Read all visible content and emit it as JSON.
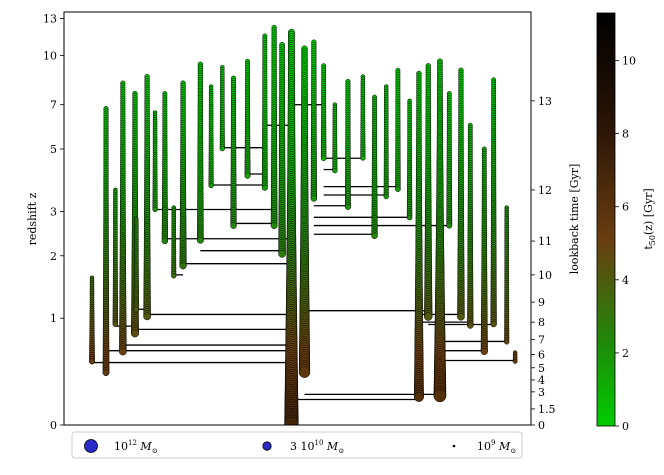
{
  "chart_data": {
    "type": "scatter",
    "title": "",
    "ylabel": "redshift z",
    "ylabel_right": "lookback time [Gyr]",
    "colorbar_label": "t_50(z) [Gyr]",
    "colorbar_label_main": "t",
    "colorbar_label_sub": "50",
    "colorbar_label_rest": "(z) [Gyr]",
    "y_scale": "log(1+z)",
    "ylim": [
      0,
      13.6
    ],
    "y_ticks": [
      "0",
      "1",
      "2",
      "3",
      "5",
      "7",
      "10",
      "13"
    ],
    "y_tick_values": [
      0,
      1,
      2,
      3,
      5,
      7,
      10,
      13
    ],
    "right_ticks": [
      "0",
      "1.5",
      "3",
      "4",
      "5",
      "6",
      "7",
      "8",
      "9",
      "10",
      "11",
      "12",
      "13"
    ],
    "right_tick_values": [
      0,
      1.5,
      3,
      4,
      5,
      6,
      7,
      8,
      9,
      10,
      11,
      12,
      13
    ],
    "colorbar_range": [
      0,
      11.3
    ],
    "colorbar_ticks": [
      "0",
      "2",
      "4",
      "6",
      "8",
      "10"
    ],
    "colorbar_tick_values": [
      0,
      2,
      4,
      6,
      8,
      10
    ],
    "colormap": [
      "#00cc00",
      "#1f8a0a",
      "#6a3e10",
      "#2b1506",
      "#000000"
    ],
    "marker_edge_color": "#000000",
    "legend": {
      "placement": "bottom",
      "entries": [
        {
          "label": "10",
          "sup": "12",
          "unit": "M",
          "sub": "⊙",
          "size": "large"
        },
        {
          "label": "3 10",
          "sup": "10",
          "unit": "M",
          "sub": "⊙",
          "size": "medium"
        },
        {
          "label": "10",
          "sup": "9",
          "unit": "M",
          "sub": "⊙",
          "size": "small"
        }
      ],
      "marker_color": "#2b2bc9"
    },
    "branches": [
      {
        "x": 0.487,
        "z_top": 11.8,
        "z_bottom": 0,
        "r_top": 3.2,
        "r_bottom": 7
      },
      {
        "x": 0.515,
        "z_top": 10.5,
        "z_bottom": 0.4,
        "r_top": 3.0,
        "r_bottom": 5.5
      },
      {
        "x": 0.467,
        "z_top": 10.8,
        "z_bottom": 2.0,
        "r_top": 2.6,
        "r_bottom": 3.6
      },
      {
        "x": 0.45,
        "z_top": 12.2,
        "z_bottom": 2.6,
        "r_top": 2.4,
        "r_bottom": 3.2
      },
      {
        "x": 0.43,
        "z_top": 11.5,
        "z_bottom": 3.6,
        "r_top": 2.2,
        "r_bottom": 2.8
      },
      {
        "x": 0.535,
        "z_top": 11.0,
        "z_bottom": 3.3,
        "r_top": 2.4,
        "r_bottom": 3.0
      },
      {
        "x": 0.556,
        "z_top": 9.3,
        "z_bottom": 4.6,
        "r_top": 2.2,
        "r_bottom": 2.6
      },
      {
        "x": 0.393,
        "z_top": 9.6,
        "z_bottom": 4.0,
        "r_top": 2.2,
        "r_bottom": 2.8
      },
      {
        "x": 0.363,
        "z_top": 8.5,
        "z_bottom": 2.6,
        "r_top": 2.3,
        "r_bottom": 3.0
      },
      {
        "x": 0.339,
        "z_top": 9.2,
        "z_bottom": 5.0,
        "r_top": 2.0,
        "r_bottom": 2.4
      },
      {
        "x": 0.315,
        "z_top": 8.0,
        "z_bottom": 3.7,
        "r_top": 2.0,
        "r_bottom": 2.4
      },
      {
        "x": 0.292,
        "z_top": 9.4,
        "z_bottom": 2.3,
        "r_top": 2.4,
        "r_bottom": 3.2
      },
      {
        "x": 0.255,
        "z_top": 8.2,
        "z_bottom": 1.8,
        "r_top": 2.4,
        "r_bottom": 3.4
      },
      {
        "x": 0.216,
        "z_top": 7.6,
        "z_bottom": 2.3,
        "r_top": 2.2,
        "r_bottom": 3.0
      },
      {
        "x": 0.195,
        "z_top": 6.6,
        "z_bottom": 3.0,
        "r_top": 2.0,
        "r_bottom": 2.4
      },
      {
        "x": 0.178,
        "z_top": 8.6,
        "z_bottom": 1.0,
        "r_top": 2.4,
        "r_bottom": 3.6
      },
      {
        "x": 0.152,
        "z_top": 7.6,
        "z_bottom": 0.8,
        "r_top": 2.4,
        "r_bottom": 3.8
      },
      {
        "x": 0.126,
        "z_top": 8.2,
        "z_bottom": 0.6,
        "r_top": 2.3,
        "r_bottom": 3.6
      },
      {
        "x": 0.11,
        "z_top": 3.6,
        "z_bottom": 0.9,
        "r_top": 2.0,
        "r_bottom": 2.6
      },
      {
        "x": 0.09,
        "z_top": 6.8,
        "z_bottom": 0.4,
        "r_top": 2.3,
        "r_bottom": 3.2
      },
      {
        "x": 0.06,
        "z_top": 1.6,
        "z_bottom": 0.5,
        "r_top": 2.0,
        "r_bottom": 2.8
      },
      {
        "x": 0.155,
        "z_top": 2.8,
        "z_bottom": 1.1,
        "r_top": 2.0,
        "r_bottom": 2.6
      },
      {
        "x": 0.235,
        "z_top": 3.1,
        "z_bottom": 1.6,
        "r_top": 2.0,
        "r_bottom": 2.4
      },
      {
        "x": 0.58,
        "z_top": 7.0,
        "z_bottom": 4.2,
        "r_top": 2.0,
        "r_bottom": 2.4
      },
      {
        "x": 0.608,
        "z_top": 8.3,
        "z_bottom": 3.1,
        "r_top": 2.3,
        "r_bottom": 2.8
      },
      {
        "x": 0.64,
        "z_top": 8.6,
        "z_bottom": 4.6,
        "r_top": 2.0,
        "r_bottom": 2.4
      },
      {
        "x": 0.665,
        "z_top": 7.4,
        "z_bottom": 2.4,
        "r_top": 2.2,
        "r_bottom": 3.0
      },
      {
        "x": 0.69,
        "z_top": 8.0,
        "z_bottom": 3.4,
        "r_top": 2.0,
        "r_bottom": 2.4
      },
      {
        "x": 0.715,
        "z_top": 9.0,
        "z_bottom": 3.6,
        "r_top": 2.2,
        "r_bottom": 2.6
      },
      {
        "x": 0.74,
        "z_top": 7.2,
        "z_bottom": 2.8,
        "r_top": 2.0,
        "r_bottom": 2.6
      },
      {
        "x": 0.76,
        "z_top": 8.8,
        "z_bottom": 0.2,
        "r_top": 2.4,
        "r_bottom": 4.8
      },
      {
        "x": 0.78,
        "z_top": 9.3,
        "z_bottom": 1.0,
        "r_top": 2.4,
        "r_bottom": 4.0
      },
      {
        "x": 0.805,
        "z_top": 9.6,
        "z_bottom": 0.2,
        "r_top": 2.6,
        "r_bottom": 6.2
      },
      {
        "x": 0.825,
        "z_top": 7.6,
        "z_bottom": 2.6,
        "r_top": 2.2,
        "r_bottom": 2.8
      },
      {
        "x": 0.85,
        "z_top": 9.0,
        "z_bottom": 1.0,
        "r_top": 2.4,
        "r_bottom": 3.6
      },
      {
        "x": 0.87,
        "z_top": 6.0,
        "z_bottom": 0.9,
        "r_top": 2.2,
        "r_bottom": 3.0
      },
      {
        "x": 0.9,
        "z_top": 5.0,
        "z_bottom": 0.6,
        "r_top": 2.2,
        "r_bottom": 3.4
      },
      {
        "x": 0.92,
        "z_top": 8.4,
        "z_bottom": 0.9,
        "r_top": 2.2,
        "r_bottom": 3.0
      },
      {
        "x": 0.948,
        "z_top": 3.1,
        "z_bottom": 0.7,
        "r_top": 2.0,
        "r_bottom": 2.4
      },
      {
        "x": 0.966,
        "z_top": 0.6,
        "z_bottom": 0.5,
        "r_top": 2.0,
        "r_bottom": 2.2
      }
    ],
    "links": [
      {
        "x1": 0.06,
        "x2": 0.487,
        "z": 0.5
      },
      {
        "x1": 0.09,
        "x2": 0.487,
        "z": 0.62
      },
      {
        "x1": 0.126,
        "x2": 0.487,
        "z": 0.68
      },
      {
        "x1": 0.152,
        "x2": 0.487,
        "z": 0.86
      },
      {
        "x1": 0.11,
        "x2": 0.152,
        "z": 0.9
      },
      {
        "x1": 0.178,
        "x2": 0.487,
        "z": 1.05
      },
      {
        "x1": 0.155,
        "x2": 0.178,
        "z": 1.12
      },
      {
        "x1": 0.255,
        "x2": 0.487,
        "z": 1.85
      },
      {
        "x1": 0.235,
        "x2": 0.255,
        "z": 1.65
      },
      {
        "x1": 0.216,
        "x2": 0.487,
        "z": 2.35
      },
      {
        "x1": 0.292,
        "x2": 0.467,
        "z": 2.1
      },
      {
        "x1": 0.363,
        "x2": 0.45,
        "z": 2.7
      },
      {
        "x1": 0.195,
        "x2": 0.45,
        "z": 3.05
      },
      {
        "x1": 0.315,
        "x2": 0.43,
        "z": 3.75
      },
      {
        "x1": 0.393,
        "x2": 0.43,
        "z": 4.1
      },
      {
        "x1": 0.339,
        "x2": 0.43,
        "z": 5.05
      },
      {
        "x1": 0.515,
        "x2": 0.805,
        "z": 0.22
      },
      {
        "x1": 0.487,
        "x2": 0.76,
        "z": 0.18
      },
      {
        "x1": 0.805,
        "x2": 0.966,
        "z": 0.52
      },
      {
        "x1": 0.805,
        "x2": 0.9,
        "z": 0.62
      },
      {
        "x1": 0.805,
        "x2": 0.948,
        "z": 0.72
      },
      {
        "x1": 0.78,
        "x2": 0.92,
        "z": 0.92
      },
      {
        "x1": 0.76,
        "x2": 0.85,
        "z": 1.05
      },
      {
        "x1": 0.76,
        "x2": 0.87,
        "z": 0.95
      },
      {
        "x1": 0.515,
        "x2": 0.78,
        "z": 1.1
      },
      {
        "x1": 0.535,
        "x2": 0.74,
        "z": 2.85
      },
      {
        "x1": 0.535,
        "x2": 0.665,
        "z": 2.45
      },
      {
        "x1": 0.535,
        "x2": 0.608,
        "z": 3.15
      },
      {
        "x1": 0.535,
        "x2": 0.825,
        "z": 2.65
      },
      {
        "x1": 0.556,
        "x2": 0.69,
        "z": 3.45
      },
      {
        "x1": 0.556,
        "x2": 0.715,
        "z": 3.7
      },
      {
        "x1": 0.556,
        "x2": 0.58,
        "z": 4.25
      },
      {
        "x1": 0.556,
        "x2": 0.64,
        "z": 4.65
      },
      {
        "x1": 0.487,
        "x2": 0.556,
        "z": 7.0
      },
      {
        "x1": 0.43,
        "x2": 0.487,
        "z": 6.0
      }
    ]
  }
}
